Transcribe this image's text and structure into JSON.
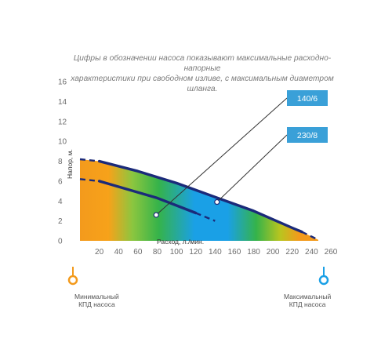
{
  "caption": {
    "line1": "Цифры в обозначении насоса показывают максимальные расходно-напорные",
    "line2": "характеристики при свободном изливе, с максимальным диаметром шланга."
  },
  "chart_data": {
    "type": "line",
    "xlabel": "Расход, л./мин.",
    "ylabel": "Напор, м.",
    "xlim": [
      0,
      260
    ],
    "ylim": [
      0,
      16
    ],
    "x_ticks": [
      20,
      40,
      60,
      80,
      100,
      120,
      140,
      160,
      180,
      200,
      220,
      240,
      260
    ],
    "y_ticks": [
      0,
      2,
      4,
      6,
      8,
      10,
      12,
      14,
      16
    ],
    "grid": false,
    "series": [
      {
        "name": "140/6",
        "solid": [
          [
            20,
            6.0
          ],
          [
            80,
            4.3
          ],
          [
            120,
            2.8
          ]
        ],
        "dashed": [
          [
            0,
            6.2
          ],
          [
            20,
            6.0
          ]
        ],
        "dashed_tail": [
          [
            120,
            2.8
          ],
          [
            140,
            2.0
          ]
        ],
        "marker": [
          79,
          2.6
        ]
      },
      {
        "name": "230/8",
        "solid": [
          [
            20,
            8.0
          ],
          [
            60,
            7.0
          ],
          [
            100,
            5.8
          ],
          [
            140,
            4.4
          ],
          [
            180,
            3.0
          ],
          [
            220,
            1.3
          ],
          [
            230,
            0.9
          ]
        ],
        "dashed": [
          [
            0,
            8.2
          ],
          [
            20,
            8.0
          ]
        ],
        "dashed_tail": [
          [
            230,
            0.9
          ],
          [
            247,
            0.1
          ]
        ],
        "marker": [
          142,
          3.9
        ]
      }
    ],
    "legend": {
      "min_label_1": "Минимальный",
      "min_label_2": "КПД насоса",
      "max_label_1": "Максимальный",
      "max_label_2": "КПД насоса"
    },
    "colors": {
      "curve": "#1b2a7a",
      "badge": "#3aa0d8",
      "efficiency_low": "#f39a1c",
      "efficiency_mid": "#35b34a",
      "efficiency_high": "#1aa0e6"
    }
  }
}
